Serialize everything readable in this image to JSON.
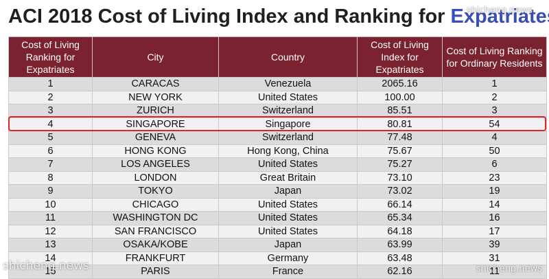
{
  "title": {
    "main": "ACI 2018 Cost of Living Index and Ranking for ",
    "accent": "Expatriates"
  },
  "columns": [
    "Cost of Living Ranking for Expatriates",
    "City",
    "Country",
    "Cost of Living Index for Expatriates",
    "Cost of Living Ranking for Ordinary Residents"
  ],
  "rows": [
    {
      "rank": "1",
      "city": "CARACAS",
      "country": "Venezuela",
      "index": "2065.16",
      "resident_rank": "1"
    },
    {
      "rank": "2",
      "city": "NEW YORK",
      "country": "United States",
      "index": "100.00",
      "resident_rank": "2"
    },
    {
      "rank": "3",
      "city": "ZURICH",
      "country": "Switzerland",
      "index": "85.51",
      "resident_rank": "3"
    },
    {
      "rank": "4",
      "city": "SINGAPORE",
      "country": "Singapore",
      "index": "80.81",
      "resident_rank": "54"
    },
    {
      "rank": "5",
      "city": "GENEVA",
      "country": "Switzerland",
      "index": "77.48",
      "resident_rank": "4"
    },
    {
      "rank": "6",
      "city": "HONG KONG",
      "country": "Hong Kong, China",
      "index": "75.67",
      "resident_rank": "50"
    },
    {
      "rank": "7",
      "city": "LOS ANGELES",
      "country": "United States",
      "index": "75.27",
      "resident_rank": "6"
    },
    {
      "rank": "8",
      "city": "LONDON",
      "country": "Great Britain",
      "index": "73.10",
      "resident_rank": "23"
    },
    {
      "rank": "9",
      "city": "TOKYO",
      "country": "Japan",
      "index": "73.02",
      "resident_rank": "19"
    },
    {
      "rank": "10",
      "city": "CHICAGO",
      "country": "United States",
      "index": "66.14",
      "resident_rank": "14"
    },
    {
      "rank": "11",
      "city": "WASHINGTON DC",
      "country": "United States",
      "index": "65.34",
      "resident_rank": "16"
    },
    {
      "rank": "12",
      "city": "SAN FRANCISCO",
      "country": "United States",
      "index": "64.18",
      "resident_rank": "17"
    },
    {
      "rank": "13",
      "city": "OSAKA/KOBE",
      "country": "Japan",
      "index": "63.99",
      "resident_rank": "39"
    },
    {
      "rank": "14",
      "city": "FRANKFURT",
      "country": "Germany",
      "index": "63.48",
      "resident_rank": "31"
    },
    {
      "rank": "15",
      "city": "PARIS",
      "country": "France",
      "index": "62.16",
      "resident_rank": "11"
    }
  ],
  "highlight_color": "#e0242b",
  "header_color": "#7a2230",
  "watermarks": {
    "top_right": "shicheng.news",
    "bottom_left": "shicheng.news",
    "bottom_right": "shicheng.news"
  }
}
